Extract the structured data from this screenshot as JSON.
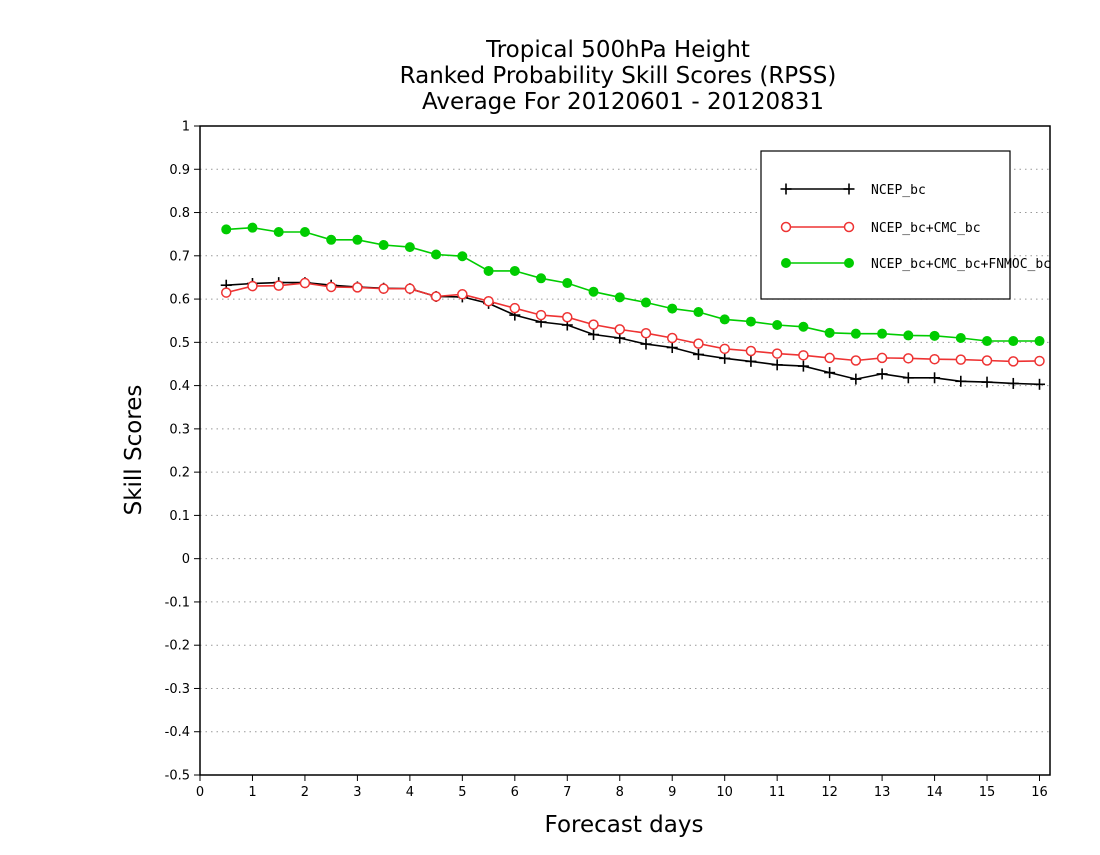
{
  "chart_data": {
    "type": "line",
    "title_lines": [
      "Tropical 500hPa Height",
      "Ranked Probability Skill Scores (RPSS)",
      "Average For 20120601 - 20120831"
    ],
    "xlabel": "Forecast days",
    "ylabel": "Skill Scores",
    "xlim": [
      0,
      16.2
    ],
    "ylim": [
      -0.5,
      1
    ],
    "xticks": [
      "0",
      "1",
      "2",
      "3",
      "4",
      "5",
      "6",
      "7",
      "8",
      "9",
      "10",
      "11",
      "12",
      "13",
      "14",
      "15",
      "16"
    ],
    "yticks": [
      "1",
      "0.9",
      "0.8",
      "0.7",
      "0.6",
      "0.5",
      "0.4",
      "0.3",
      "0.2",
      "0.1",
      "0",
      "-0.1",
      "-0.2",
      "-0.3",
      "-0.4",
      "-0.5"
    ],
    "grid": "horizontal dotted",
    "legend_position": "top-right",
    "x": [
      0.5,
      1,
      1.5,
      2,
      2.5,
      3,
      3.5,
      4,
      4.5,
      5,
      5.5,
      6,
      6.5,
      7,
      7.5,
      8,
      8.5,
      9,
      9.5,
      10,
      10.5,
      11,
      11.5,
      12,
      12.5,
      13,
      13.5,
      14,
      14.5,
      15,
      15.5,
      16
    ],
    "series": [
      {
        "name": "NCEP_bc",
        "color": "#000000",
        "marker": "plus",
        "values": [
          0.632,
          0.636,
          0.638,
          0.638,
          0.632,
          0.628,
          0.625,
          0.624,
          0.606,
          0.605,
          0.59,
          0.563,
          0.547,
          0.54,
          0.518,
          0.51,
          0.496,
          0.488,
          0.472,
          0.463,
          0.456,
          0.448,
          0.445,
          0.43,
          0.415,
          0.427,
          0.418,
          0.418,
          0.41,
          0.408,
          0.405,
          0.403
        ]
      },
      {
        "name": "NCEP_bc+CMC_bc",
        "color": "#ee3333",
        "marker": "open-circle",
        "values": [
          0.615,
          0.63,
          0.631,
          0.637,
          0.628,
          0.627,
          0.624,
          0.624,
          0.606,
          0.611,
          0.595,
          0.579,
          0.563,
          0.558,
          0.541,
          0.53,
          0.521,
          0.51,
          0.497,
          0.485,
          0.48,
          0.474,
          0.47,
          0.464,
          0.458,
          0.464,
          0.463,
          0.461,
          0.46,
          0.458,
          0.456,
          0.457
        ]
      },
      {
        "name": "NCEP_bc+CMC_bc+FNMOC_bc",
        "color": "#00cc00",
        "marker": "filled-circle",
        "values": [
          0.761,
          0.765,
          0.755,
          0.755,
          0.737,
          0.737,
          0.725,
          0.72,
          0.703,
          0.699,
          0.665,
          0.665,
          0.648,
          0.637,
          0.617,
          0.604,
          0.592,
          0.578,
          0.57,
          0.553,
          0.548,
          0.54,
          0.536,
          0.522,
          0.52,
          0.52,
          0.516,
          0.515,
          0.51,
          0.503,
          0.503,
          0.503
        ]
      }
    ]
  }
}
